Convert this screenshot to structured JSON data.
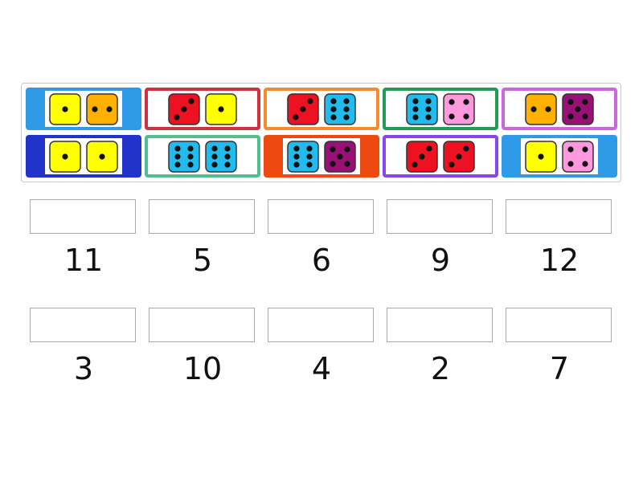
{
  "tiles": [
    {
      "dice": [
        1,
        2
      ],
      "colors": [
        "#ffff00",
        "#ffb000"
      ],
      "border": "#2f9be8",
      "style": "fill"
    },
    {
      "dice": [
        3,
        1
      ],
      "colors": [
        "#ee1122",
        "#ffff00"
      ],
      "border": "#d0313f",
      "style": "frame"
    },
    {
      "dice": [
        3,
        6
      ],
      "colors": [
        "#ee1122",
        "#22bbee"
      ],
      "border": "#f58a2e",
      "style": "frame"
    },
    {
      "dice": [
        6,
        4
      ],
      "colors": [
        "#22bbee",
        "#ff99dd"
      ],
      "border": "#249b57",
      "style": "frame"
    },
    {
      "dice": [
        2,
        5
      ],
      "colors": [
        "#ffb000",
        "#991177"
      ],
      "border": "#cc66dd",
      "style": "frame"
    },
    {
      "dice": [
        1,
        1
      ],
      "colors": [
        "#ffff00",
        "#ffff00"
      ],
      "border": "#2233cc",
      "style": "fill"
    },
    {
      "dice": [
        6,
        6
      ],
      "colors": [
        "#22bbee",
        "#22bbee"
      ],
      "border": "#50c090",
      "style": "frame"
    },
    {
      "dice": [
        6,
        5
      ],
      "colors": [
        "#22bbee",
        "#991177"
      ],
      "border": "#ee4a10",
      "style": "fill"
    },
    {
      "dice": [
        3,
        3
      ],
      "colors": [
        "#ee1122",
        "#ee1122"
      ],
      "border": "#8844ee",
      "style": "frame"
    },
    {
      "dice": [
        1,
        4
      ],
      "colors": [
        "#ffff00",
        "#ff99dd"
      ],
      "border": "#2f9be8",
      "style": "fill"
    }
  ],
  "targets": [
    "11",
    "5",
    "6",
    "9",
    "12",
    "3",
    "10",
    "4",
    "2",
    "7"
  ]
}
